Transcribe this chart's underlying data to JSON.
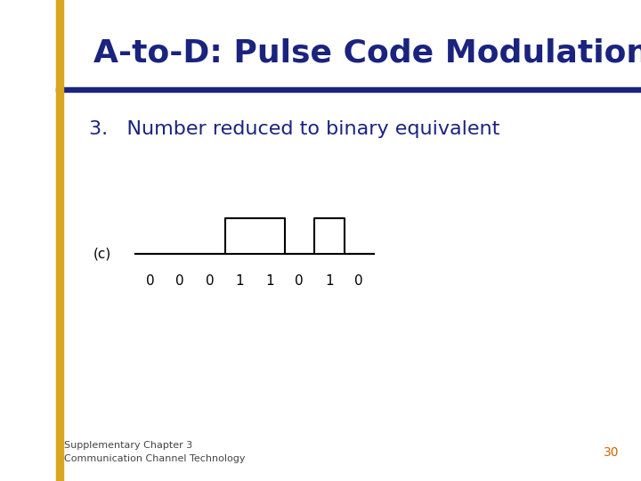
{
  "title": "A-to-D: Pulse Code Modulation",
  "subtitle": "3.   Number reduced to binary equivalent",
  "label_c": "(c)",
  "binary_sequence": [
    0,
    0,
    0,
    1,
    1,
    0,
    1,
    0
  ],
  "footer_line1": "Supplementary Chapter 3",
  "footer_line2": "Communication Channel Technology",
  "page_number": "30",
  "bg_color": "#ffffff",
  "title_text_color": "#1a237e",
  "gold_bar_color": "#DAA520",
  "separator_color": "#1a237e",
  "subtitle_text_color": "#1a237e",
  "waveform_color": "#000000",
  "footer_color": "#444444",
  "page_num_color": "#cc6600",
  "title_fontsize": 26,
  "subtitle_fontsize": 16,
  "label_fontsize": 11,
  "bit_fontsize": 11,
  "footer_fontsize": 8,
  "page_num_fontsize": 10
}
